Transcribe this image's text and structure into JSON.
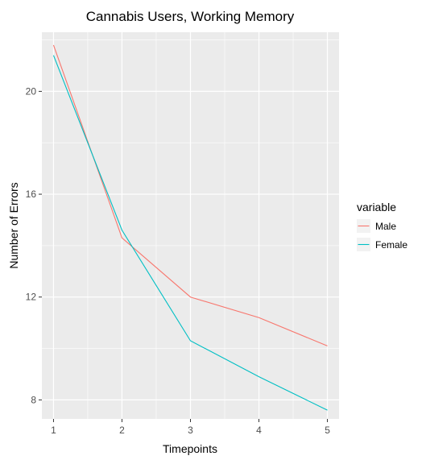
{
  "chart_data": {
    "type": "line",
    "title": "Cannabis Users, Working Memory",
    "xlabel": "Timepoints",
    "ylabel": "Number of Errors",
    "x": [
      1,
      2,
      3,
      4,
      5
    ],
    "xlim": [
      0.83,
      5.17
    ],
    "ylim": [
      7.26,
      22.3
    ],
    "x_ticks": [
      1,
      2,
      3,
      4,
      5
    ],
    "y_ticks": [
      8,
      12,
      16,
      20
    ],
    "grid": true,
    "legend": {
      "title": "variable",
      "position": "right"
    },
    "series": [
      {
        "name": "Male",
        "color": "#F8766D",
        "values": [
          21.8,
          14.3,
          12.0,
          11.2,
          10.1
        ]
      },
      {
        "name": "Female",
        "color": "#00BFC4",
        "values": [
          21.4,
          14.6,
          10.3,
          8.9,
          7.6
        ]
      }
    ],
    "panel_background": "#EBEBEB",
    "grid_color": "#FFFFFF"
  }
}
